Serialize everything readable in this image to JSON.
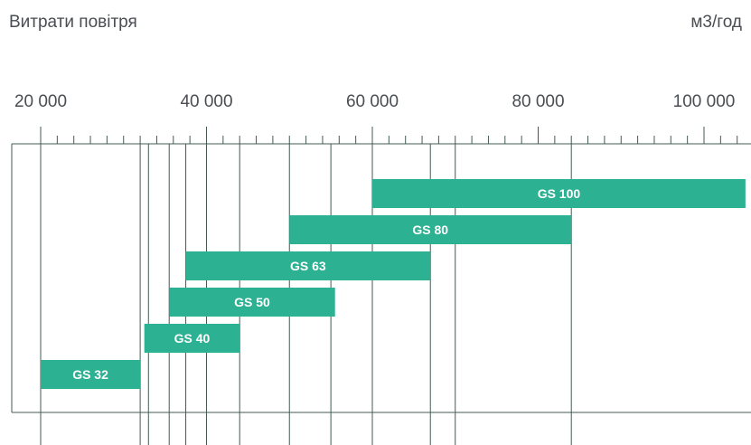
{
  "header": {
    "title": "Витрати повітря",
    "unit": "м3/год"
  },
  "colors": {
    "bar": "#2cb192",
    "line": "#435b52",
    "text": "#4a4d52",
    "label": "#ffffff"
  },
  "chart_data": {
    "type": "bar",
    "orientation": "horizontal",
    "title": "Витрати повітря",
    "unit": "м3/год",
    "xlim": [
      20000,
      100000
    ],
    "x_tick_labels": [
      "20 000",
      "40 000",
      "60 000",
      "80 000",
      "100 000"
    ],
    "x_ticks": [
      20000,
      40000,
      60000,
      80000,
      100000
    ],
    "minor_tick_step": 2000,
    "series": [
      {
        "name": "GS 100",
        "start": 60000,
        "end": 105000
      },
      {
        "name": "GS 80",
        "start": 50000,
        "end": 84000
      },
      {
        "name": "GS 63",
        "start": 37500,
        "end": 67000
      },
      {
        "name": "GS 50",
        "start": 35500,
        "end": 55500
      },
      {
        "name": "GS 40",
        "start": 32500,
        "end": 44000
      },
      {
        "name": "GS 32",
        "start": 20000,
        "end": 32000
      }
    ],
    "reference_lines": [
      20000,
      32000,
      33000,
      35500,
      37500,
      40000,
      44000,
      50000,
      55000,
      60000,
      67000,
      70000,
      84000
    ]
  }
}
